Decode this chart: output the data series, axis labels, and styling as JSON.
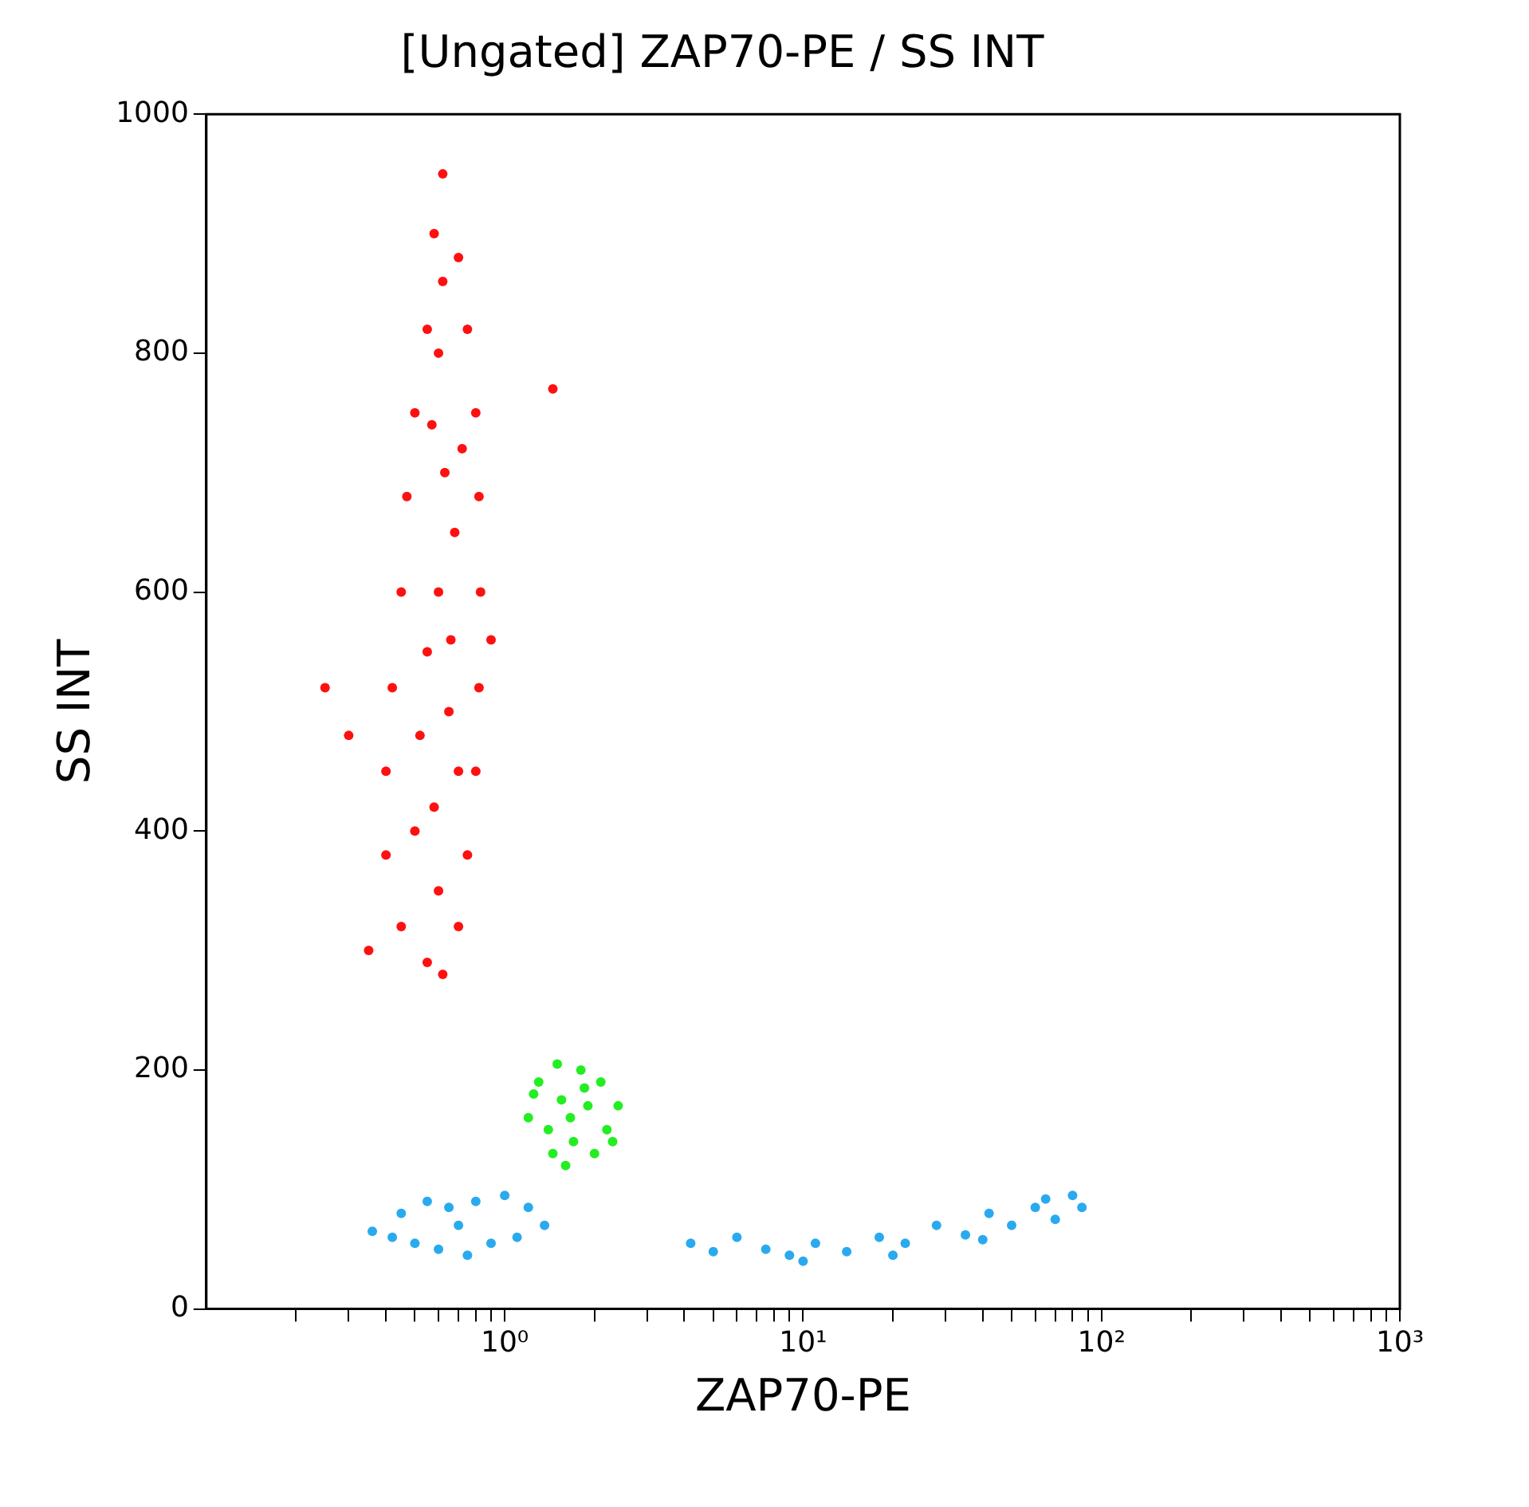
{
  "chart_data": {
    "type": "scatter",
    "title": "[Ungated] ZAP70-PE / SS INT",
    "xlabel": "ZAP70-PE",
    "ylabel": "SS INT",
    "log": "x",
    "grid": false,
    "legend": false,
    "marker": "circle",
    "xlim": [
      0.1,
      1000
    ],
    "ylim": [
      0,
      1000
    ],
    "xticks": [
      {
        "value": 0.2,
        "label": null
      },
      {
        "value": 0.3,
        "label": null
      },
      {
        "value": 0.4,
        "label": null
      },
      {
        "value": 0.5,
        "label": null
      },
      {
        "value": 0.6,
        "label": null
      },
      {
        "value": 0.7,
        "label": null
      },
      {
        "value": 0.8,
        "label": null
      },
      {
        "value": 0.9,
        "label": null
      },
      {
        "value": 1,
        "label": "10⁰"
      },
      {
        "value": 2,
        "label": null
      },
      {
        "value": 3,
        "label": null
      },
      {
        "value": 4,
        "label": null
      },
      {
        "value": 5,
        "label": null
      },
      {
        "value": 6,
        "label": null
      },
      {
        "value": 7,
        "label": null
      },
      {
        "value": 8,
        "label": null
      },
      {
        "value": 9,
        "label": null
      },
      {
        "value": 10,
        "label": "10¹"
      },
      {
        "value": 20,
        "label": null
      },
      {
        "value": 30,
        "label": null
      },
      {
        "value": 40,
        "label": null
      },
      {
        "value": 50,
        "label": null
      },
      {
        "value": 60,
        "label": null
      },
      {
        "value": 70,
        "label": null
      },
      {
        "value": 80,
        "label": null
      },
      {
        "value": 90,
        "label": null
      },
      {
        "value": 100,
        "label": "10²"
      },
      {
        "value": 200,
        "label": null
      },
      {
        "value": 300,
        "label": null
      },
      {
        "value": 400,
        "label": null
      },
      {
        "value": 500,
        "label": null
      },
      {
        "value": 600,
        "label": null
      },
      {
        "value": 700,
        "label": null
      },
      {
        "value": 800,
        "label": null
      },
      {
        "value": 900,
        "label": null
      },
      {
        "value": 1000,
        "label": "10³"
      }
    ],
    "yticks": [
      0,
      200,
      400,
      600,
      800,
      1000
    ],
    "series": [
      {
        "color": "#ff1010",
        "x": [
          0.62,
          0.58,
          0.7,
          0.55,
          0.75,
          0.5,
          0.8,
          0.47,
          0.82,
          0.45,
          0.83,
          0.42,
          0.82,
          0.4,
          0.8,
          0.4,
          0.75,
          0.45,
          0.7,
          0.55,
          0.62,
          0.6,
          0.63,
          0.6,
          0.65,
          0.58,
          0.6,
          0.68,
          0.55,
          0.7,
          0.52,
          0.66,
          0.57,
          0.72,
          0.5,
          0.62,
          0.3,
          0.25,
          1.45,
          0.35,
          0.9
        ],
        "values": [
          950,
          900,
          880,
          820,
          820,
          750,
          750,
          680,
          680,
          600,
          600,
          520,
          520,
          450,
          450,
          380,
          380,
          320,
          320,
          290,
          280,
          800,
          700,
          600,
          500,
          420,
          350,
          650,
          550,
          450,
          480,
          560,
          740,
          720,
          400,
          860,
          480,
          520,
          770,
          300,
          560
        ]
      },
      {
        "color": "#22ee22",
        "x": [
          1.66,
          1.3,
          1.5,
          1.8,
          2.1,
          2.4,
          1.2,
          1.4,
          1.7,
          2.0,
          2.3,
          1.25,
          1.55,
          1.9,
          2.2,
          1.6,
          1.45,
          1.85
        ],
        "values": [
          160,
          190,
          205,
          200,
          190,
          170,
          160,
          150,
          140,
          130,
          140,
          180,
          175,
          170,
          150,
          120,
          130,
          185
        ]
      },
      {
        "color": "#2aaaee",
        "x": [
          0.36,
          0.45,
          0.55,
          0.65,
          0.8,
          1.0,
          1.2,
          1.36,
          0.5,
          0.6,
          0.75,
          0.9,
          0.42,
          0.7,
          1.1,
          4.2,
          5,
          6,
          7.5,
          9,
          11,
          14,
          18,
          22,
          28,
          35,
          42,
          50,
          60,
          70,
          80,
          86,
          10,
          20,
          40,
          65
        ],
        "values": [
          65,
          80,
          90,
          85,
          90,
          95,
          85,
          70,
          55,
          50,
          45,
          55,
          60,
          70,
          60,
          55,
          48,
          60,
          50,
          45,
          55,
          48,
          60,
          55,
          70,
          62,
          80,
          70,
          85,
          75,
          95,
          85,
          40,
          45,
          58,
          92
        ]
      }
    ]
  }
}
